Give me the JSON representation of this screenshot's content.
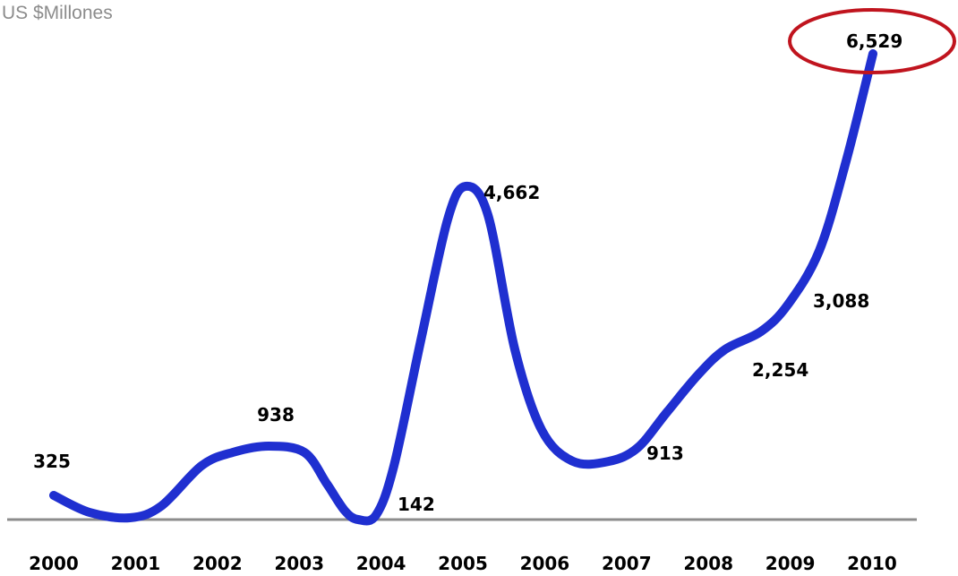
{
  "chart_data": {
    "type": "line",
    "title": "",
    "unit_label": "US $Millones",
    "xlabel": "",
    "ylabel": "",
    "categories": [
      "2000",
      "2001",
      "2002",
      "2003",
      "2004",
      "2005",
      "2006",
      "2007",
      "2008",
      "2009",
      "2010"
    ],
    "series": [
      {
        "values": [
          325,
          0,
          938,
          null,
          142,
          4662,
          null,
          913,
          2254,
          3088,
          6529
        ],
        "data_labels": [
          "325",
          "",
          "938",
          "",
          "142",
          "4,662",
          "",
          "913",
          "2,254",
          "3,088",
          "6,529"
        ]
      }
    ],
    "ylim": [
      0,
      7000
    ],
    "grid": false,
    "legend": "none",
    "line_color": "#1f2fd0",
    "axis_color": "#8c8c8c",
    "highlight": {
      "category": "2010",
      "shape": "ellipse",
      "color": "#c0141e"
    }
  }
}
